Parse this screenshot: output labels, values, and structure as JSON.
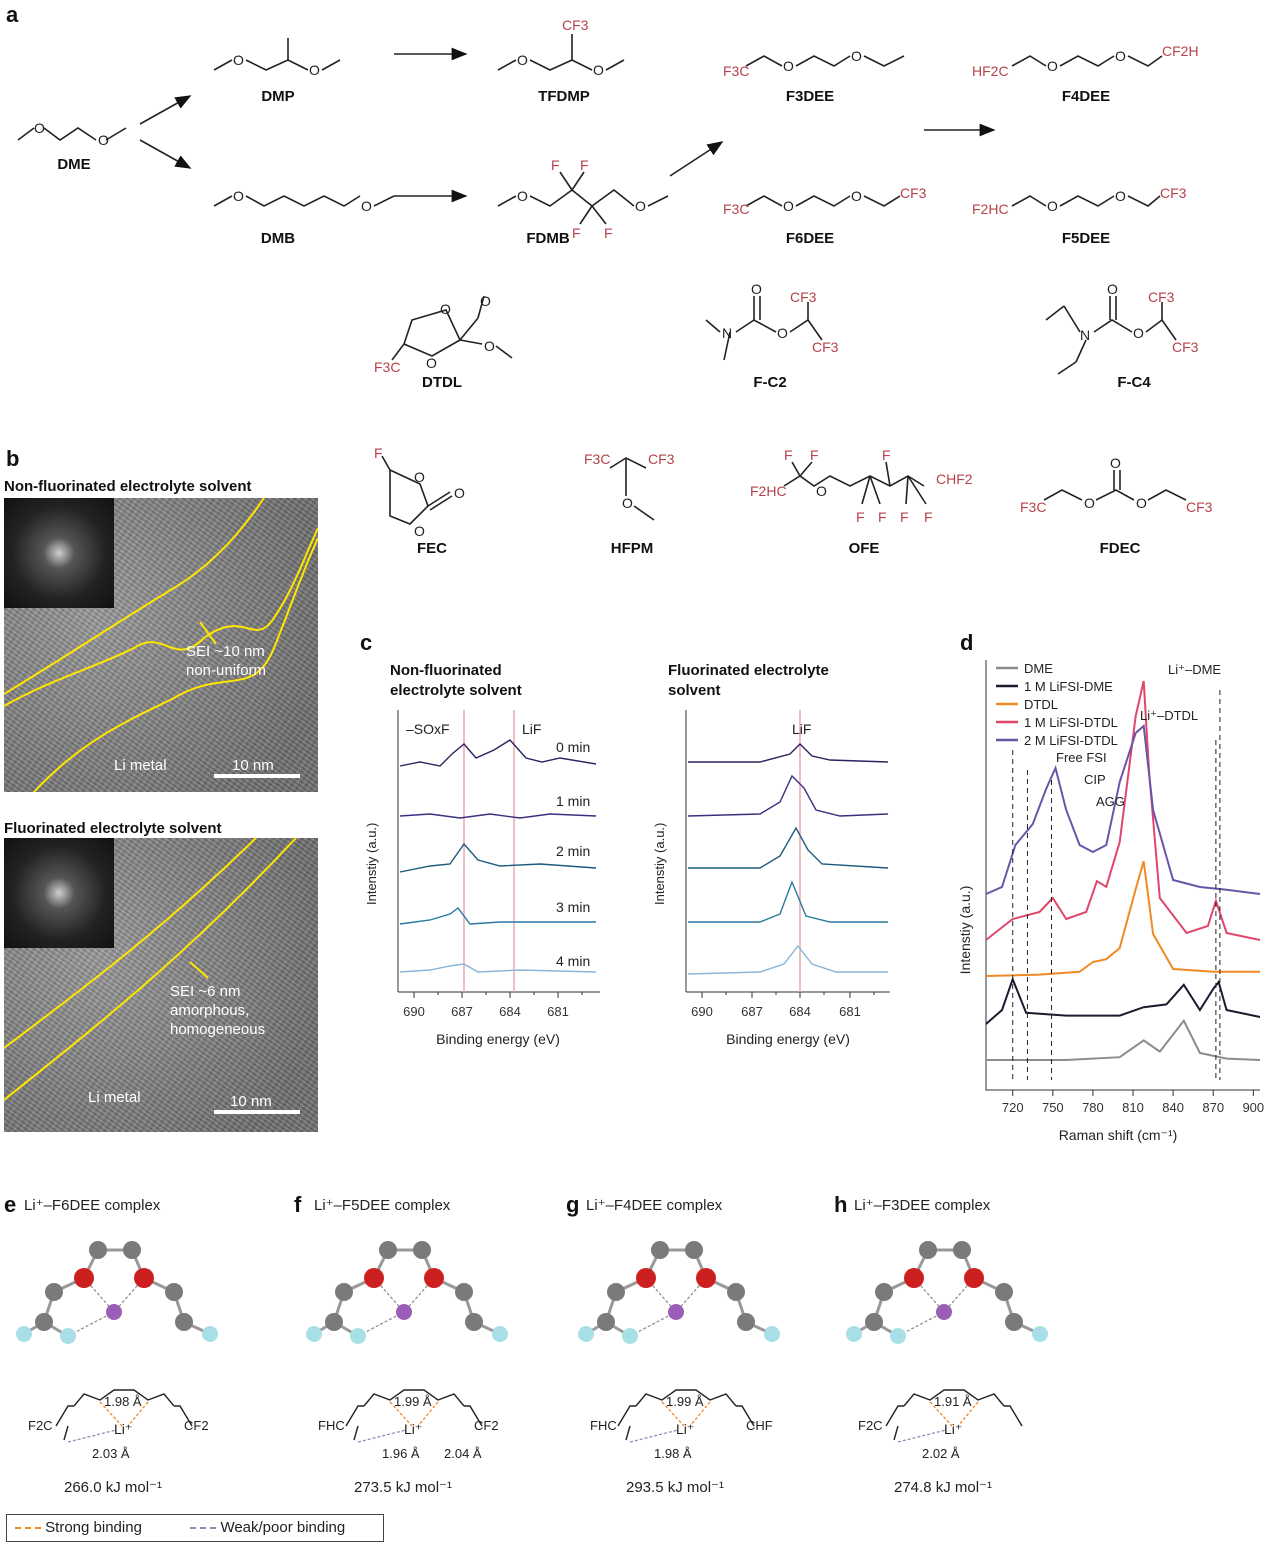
{
  "panels": {
    "a": "a",
    "b": "b",
    "c": "c",
    "d": "d",
    "e": "e",
    "f": "f",
    "g": "g",
    "h": "h"
  },
  "molecules": {
    "dme": "DME",
    "dmp": "DMP",
    "tfdmp": "TFDMP",
    "dmb": "DMB",
    "fdmb": "FDMB",
    "f3dee": "F3DEE",
    "f4dee": "F4DEE",
    "f6dee": "F6DEE",
    "f5dee": "F5DEE",
    "dtdl": "DTDL",
    "fc2": "F-C2",
    "fc4": "F-C4",
    "fec": "FEC",
    "hfpm": "HFPM",
    "ofe": "OFE",
    "fdec": "FDEC"
  },
  "atoms": {
    "cf3": "CF3",
    "f": "F",
    "o": "O",
    "n": "N",
    "f3c": "F3C",
    "hf2c": "HF2C",
    "cf2h": "CF2H",
    "f2hc": "F2HC",
    "chf2": "CHF2"
  },
  "panel_b": {
    "nonfluor_title": "Non-fluorinated electrolyte solvent",
    "fluor_title": "Fluorinated electrolyte solvent",
    "top_sei": "SEI ~10 nm",
    "top_desc": "non-uniform",
    "top_li": "Li metal",
    "top_scale": "10 nm",
    "bot_sei": "SEI ~6 nm",
    "bot_desc1": "amorphous,",
    "bot_desc2": "homogeneous",
    "bot_li": "Li metal",
    "bot_scale": "10 nm"
  },
  "panel_c": {
    "left_title1": "Non-fluorinated",
    "left_title2": "electrolyte solvent",
    "right_title1": "Fluorinated electrolyte",
    "right_title2": "solvent",
    "sox": "–SOxF",
    "lif": "LiF",
    "times": [
      "0 min",
      "1 min",
      "2 min",
      "3 min",
      "4 min"
    ],
    "ylabel": "Intenstiy (a.u.)",
    "xlabel": "Binding energy (eV)",
    "ticks": [
      "690",
      "687",
      "684",
      "681"
    ]
  },
  "chart_data": {
    "type": "line",
    "title": "",
    "xlabel": "Raman shift (cm⁻¹)",
    "ylabel": "Intenstiy (a.u.)",
    "xlim": [
      700,
      905
    ],
    "xticks": [
      720,
      750,
      780,
      810,
      840,
      870,
      900
    ],
    "legend": [
      "DME",
      "1 M LiFSI-DME",
      "DTDL",
      "1 M LiFSI-DTDL",
      "2 M LiFSI-DTDL"
    ],
    "legend_position": "top-left",
    "annotations": [
      "Free FSI",
      "CIP",
      "AGG",
      "Li⁺–DTDL",
      "Li⁺–DME"
    ],
    "colors": {
      "DME": "#8c8c8c",
      "1 M LiFSI-DME": "#1c1a2e",
      "DTDL": "#f08a24",
      "1 M LiFSI-DTDL": "#e0466a",
      "2 M LiFSI-DTDL": "#6a55a8"
    },
    "series": [
      {
        "name": "DME",
        "x": [
          700,
          720,
          760,
          800,
          818,
          830,
          848,
          860,
          880,
          905
        ],
        "y": [
          0.0,
          0.0,
          0.0,
          0.02,
          0.14,
          0.06,
          0.28,
          0.05,
          0.01,
          0.0
        ]
      },
      {
        "name": "1 M LiFSI-DME",
        "x": [
          700,
          712,
          720,
          730,
          760,
          800,
          818,
          835,
          848,
          860,
          870,
          874,
          880,
          905
        ],
        "y": [
          0.0,
          0.1,
          0.32,
          0.08,
          0.06,
          0.06,
          0.12,
          0.14,
          0.28,
          0.1,
          0.25,
          0.3,
          0.1,
          0.05
        ]
      },
      {
        "name": "DTDL",
        "x": [
          700,
          740,
          770,
          780,
          790,
          800,
          812,
          818,
          825,
          840,
          870,
          905
        ],
        "y": [
          0.0,
          0.01,
          0.03,
          0.1,
          0.12,
          0.2,
          0.62,
          0.82,
          0.3,
          0.05,
          0.03,
          0.03
        ]
      },
      {
        "name": "1 M LiFSI-DTDL",
        "x": [
          700,
          720,
          740,
          750,
          760,
          775,
          783,
          790,
          800,
          812,
          818,
          822,
          830,
          850,
          866,
          872,
          880,
          905
        ],
        "y": [
          0.0,
          0.15,
          0.2,
          0.3,
          0.15,
          0.2,
          0.42,
          0.38,
          0.7,
          1.6,
          1.85,
          1.2,
          0.3,
          0.05,
          0.1,
          0.28,
          0.05,
          0.0
        ]
      },
      {
        "name": "2 M LiFSI-DTDL",
        "x": [
          700,
          712,
          722,
          735,
          745,
          752,
          760,
          770,
          780,
          790,
          800,
          812,
          818,
          825,
          840,
          860,
          880,
          905
        ],
        "y": [
          0.0,
          0.05,
          0.35,
          0.5,
          0.75,
          0.9,
          0.6,
          0.35,
          0.3,
          0.35,
          0.8,
          1.15,
          1.2,
          0.6,
          0.1,
          0.05,
          0.03,
          0.0
        ]
      }
    ]
  },
  "complexes": [
    {
      "label": "Li⁺–F6DEE complex",
      "d1": "1.98 Å",
      "d2": "2.03 Å",
      "d3": "",
      "energy": "266.0 kJ mol⁻¹",
      "l": "F2C",
      "r": "CF2"
    },
    {
      "label": "Li⁺–F5DEE complex",
      "d1": "1.99 Å",
      "d2": "1.96 Å",
      "d3": "2.04 Å",
      "energy": "273.5 kJ mol⁻¹",
      "l": "FHC",
      "r": "CF2"
    },
    {
      "label": "Li⁺–F4DEE complex",
      "d1": "1.99 Å",
      "d2": "1.98 Å",
      "d3": "",
      "energy": "293.5 kJ mol⁻¹",
      "l": "FHC",
      "r": "CHF"
    },
    {
      "label": "Li⁺–F3DEE complex",
      "d1": "1.91 Å",
      "d2": "2.02 Å",
      "d3": "",
      "energy": "274.8 kJ mol⁻¹",
      "l": "F2C",
      "r": ""
    }
  ],
  "li": "Li⁺",
  "legend_e": {
    "strong": "Strong binding",
    "weak": "Weak/poor binding"
  }
}
